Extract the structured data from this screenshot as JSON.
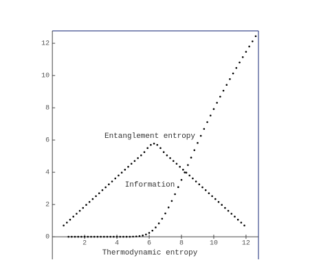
{
  "chart_data": {
    "type": "scatter",
    "x_label": "Thermodynamic entropy",
    "xlim": [
      -0.05,
      12.77
    ],
    "ylim": [
      -1.4,
      12.77
    ],
    "xticks": [
      2,
      4,
      6,
      8,
      10,
      12
    ],
    "yticks": [
      0,
      2,
      4,
      6,
      8,
      10,
      12
    ],
    "color": "#000000",
    "series": [
      {
        "name": "Entanglement entropy",
        "x": [
          0.7,
          0.9,
          1.1,
          1.3,
          1.5,
          1.7,
          1.9,
          2.1,
          2.3,
          2.5,
          2.7,
          2.9,
          3.1,
          3.3,
          3.5,
          3.7,
          3.9,
          4.1,
          4.3,
          4.5,
          4.7,
          4.9,
          5.1,
          5.3,
          5.5,
          5.7,
          5.9,
          6.1,
          6.3,
          6.5,
          6.7,
          6.9,
          7.1,
          7.3,
          7.5,
          7.7,
          7.9,
          8.1,
          8.3,
          8.5,
          8.7,
          8.9,
          9.1,
          9.3,
          9.5,
          9.7,
          9.9,
          10.1,
          10.3,
          10.5,
          10.7,
          10.9,
          11.1,
          11.3,
          11.5,
          11.7,
          11.9
        ],
        "values": [
          0.7,
          0.88,
          1.06,
          1.25,
          1.43,
          1.61,
          1.79,
          1.98,
          2.16,
          2.34,
          2.52,
          2.7,
          2.89,
          3.07,
          3.25,
          3.43,
          3.62,
          3.8,
          3.98,
          4.16,
          4.34,
          4.53,
          4.7,
          4.88,
          5.05,
          5.25,
          5.5,
          5.7,
          5.78,
          5.7,
          5.5,
          5.25,
          5.05,
          4.88,
          4.7,
          4.53,
          4.34,
          4.16,
          3.98,
          3.8,
          3.62,
          3.43,
          3.25,
          3.07,
          2.89,
          2.7,
          2.52,
          2.34,
          2.16,
          1.98,
          1.79,
          1.61,
          1.43,
          1.25,
          1.06,
          0.88,
          0.7
        ]
      },
      {
        "name": "Information",
        "x": [
          1.0,
          1.2,
          1.4,
          1.6,
          1.8,
          2.0,
          2.2,
          2.4,
          2.6,
          2.8,
          3.0,
          3.2,
          3.4,
          3.6,
          3.8,
          4.0,
          4.2,
          4.4,
          4.6,
          4.8,
          5.0,
          5.2,
          5.4,
          5.6,
          5.8,
          6.0,
          6.2,
          6.4,
          6.6,
          6.8,
          7.0,
          7.2,
          7.4,
          7.6,
          7.8,
          8.0,
          8.2,
          8.4,
          8.6,
          8.8,
          9.0,
          9.2,
          9.4,
          9.6,
          9.8,
          10.0,
          10.2,
          10.4,
          10.6,
          10.8,
          11.0,
          11.2,
          11.4,
          11.6,
          11.8,
          12.0,
          12.2,
          12.4,
          12.6
        ],
        "values": [
          0,
          0,
          0,
          0,
          0,
          0,
          0,
          0,
          0,
          0,
          0,
          0,
          0,
          0,
          0,
          0,
          0,
          0,
          0,
          0,
          0.01,
          0.02,
          0.04,
          0.08,
          0.14,
          0.24,
          0.38,
          0.58,
          0.83,
          1.12,
          1.45,
          1.82,
          2.22,
          2.64,
          3.08,
          3.53,
          3.99,
          4.45,
          4.91,
          5.37,
          5.82,
          6.26,
          6.69,
          7.11,
          7.52,
          7.92,
          8.31,
          8.69,
          9.06,
          9.42,
          9.78,
          10.13,
          10.47,
          10.81,
          11.14,
          11.47,
          11.8,
          12.12,
          12.44
        ]
      }
    ]
  }
}
